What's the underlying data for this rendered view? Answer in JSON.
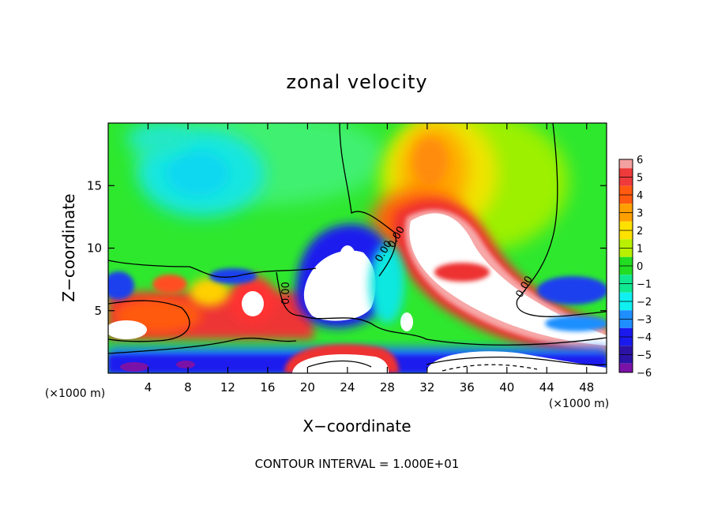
{
  "chart_data": {
    "type": "heatmap",
    "title": "zonal velocity",
    "xlabel": "X−coordinate",
    "ylabel": "Z−coordinate",
    "x_unit_label_left": "(×1000 m)",
    "x_unit_label_right": "(×1000 m)",
    "footer": "CONTOUR INTERVAL = 1.000E+01",
    "xlim": [
      0,
      50
    ],
    "ylim": [
      0,
      20
    ],
    "xticks": [
      4,
      8,
      12,
      16,
      20,
      24,
      28,
      32,
      36,
      40,
      44,
      48
    ],
    "yticks": [
      5,
      10,
      15
    ],
    "colorbar": {
      "ticks": [
        6,
        5,
        4,
        3,
        2,
        1,
        0,
        -1,
        -2,
        -3,
        -4,
        -5,
        -6
      ],
      "colors": [
        "#f4a0a0",
        "#ee3a3a",
        "#ff5a10",
        "#ffa000",
        "#ffe100",
        "#b8f000",
        "#22dd22",
        "#10e890",
        "#10f0f0",
        "#1f8fff",
        "#1a1aee",
        "#2c13a6",
        "#7a12a8"
      ]
    },
    "contour_labels": [
      "0.00",
      "0.00",
      "0.00",
      "0.00"
    ]
  }
}
